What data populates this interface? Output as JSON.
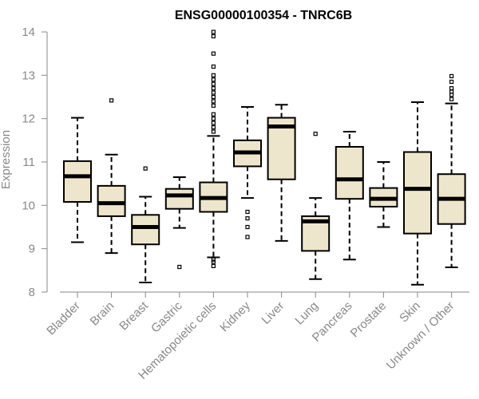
{
  "chart_data": {
    "type": "boxplot",
    "title": "ENSG00000100354 - TNRC6B",
    "xlabel": "",
    "ylabel": "Expression",
    "ylim": [
      8,
      14
    ],
    "yticks": [
      8,
      9,
      10,
      11,
      12,
      13,
      14
    ],
    "grid": false,
    "box_fill": "#EEE6CC",
    "categories": [
      "Bladder",
      "Brain",
      "Breast",
      "Gastric",
      "Hematopoietic cells",
      "Kidney",
      "Liver",
      "Lung",
      "Pancreas",
      "Prostate",
      "Skin",
      "Unknown / Other"
    ],
    "series": [
      {
        "name": "Bladder",
        "min": 9.15,
        "q1": 10.08,
        "median": 10.67,
        "q3": 11.02,
        "max": 12.02,
        "outliers": []
      },
      {
        "name": "Brain",
        "min": 8.9,
        "q1": 9.75,
        "median": 10.05,
        "q3": 10.45,
        "max": 11.17,
        "outliers": [
          12.42
        ]
      },
      {
        "name": "Breast",
        "min": 8.22,
        "q1": 9.1,
        "median": 9.5,
        "q3": 9.78,
        "max": 10.2,
        "outliers": [
          10.85
        ]
      },
      {
        "name": "Gastric",
        "min": 9.48,
        "q1": 9.92,
        "median": 10.23,
        "q3": 10.38,
        "max": 10.65,
        "outliers": [
          8.58
        ]
      },
      {
        "name": "Hematopoietic cells",
        "min": 8.8,
        "q1": 9.85,
        "median": 10.17,
        "q3": 10.53,
        "max": 11.6,
        "outliers": [
          8.6,
          8.7,
          8.75,
          11.7,
          11.8,
          11.9,
          12.0,
          12.1,
          12.3,
          12.4,
          12.5,
          12.6,
          12.7,
          12.8,
          12.9,
          13.0,
          13.2,
          13.5,
          13.9,
          14.0
        ]
      },
      {
        "name": "Kidney",
        "min": 10.17,
        "q1": 10.9,
        "median": 11.22,
        "q3": 11.5,
        "max": 12.27,
        "outliers": [
          9.85,
          9.7,
          9.5,
          9.27
        ]
      },
      {
        "name": "Liver",
        "min": 9.18,
        "q1": 10.6,
        "median": 11.82,
        "q3": 12.02,
        "max": 12.32,
        "outliers": []
      },
      {
        "name": "Lung",
        "min": 8.3,
        "q1": 8.95,
        "median": 9.63,
        "q3": 9.75,
        "max": 10.17,
        "outliers": [
          11.65
        ]
      },
      {
        "name": "Pancreas",
        "min": 8.75,
        "q1": 10.15,
        "median": 10.6,
        "q3": 11.35,
        "max": 11.7,
        "outliers": []
      },
      {
        "name": "Prostate",
        "min": 9.5,
        "q1": 9.97,
        "median": 10.15,
        "q3": 10.4,
        "max": 11.0,
        "outliers": []
      },
      {
        "name": "Skin",
        "min": 8.17,
        "q1": 9.35,
        "median": 10.38,
        "q3": 11.23,
        "max": 12.38,
        "outliers": []
      },
      {
        "name": "Unknown / Other",
        "min": 8.57,
        "q1": 9.57,
        "median": 10.15,
        "q3": 10.72,
        "max": 12.35,
        "outliers": [
          12.45,
          12.55,
          12.62,
          12.7,
          12.85,
          12.98
        ]
      }
    ]
  }
}
